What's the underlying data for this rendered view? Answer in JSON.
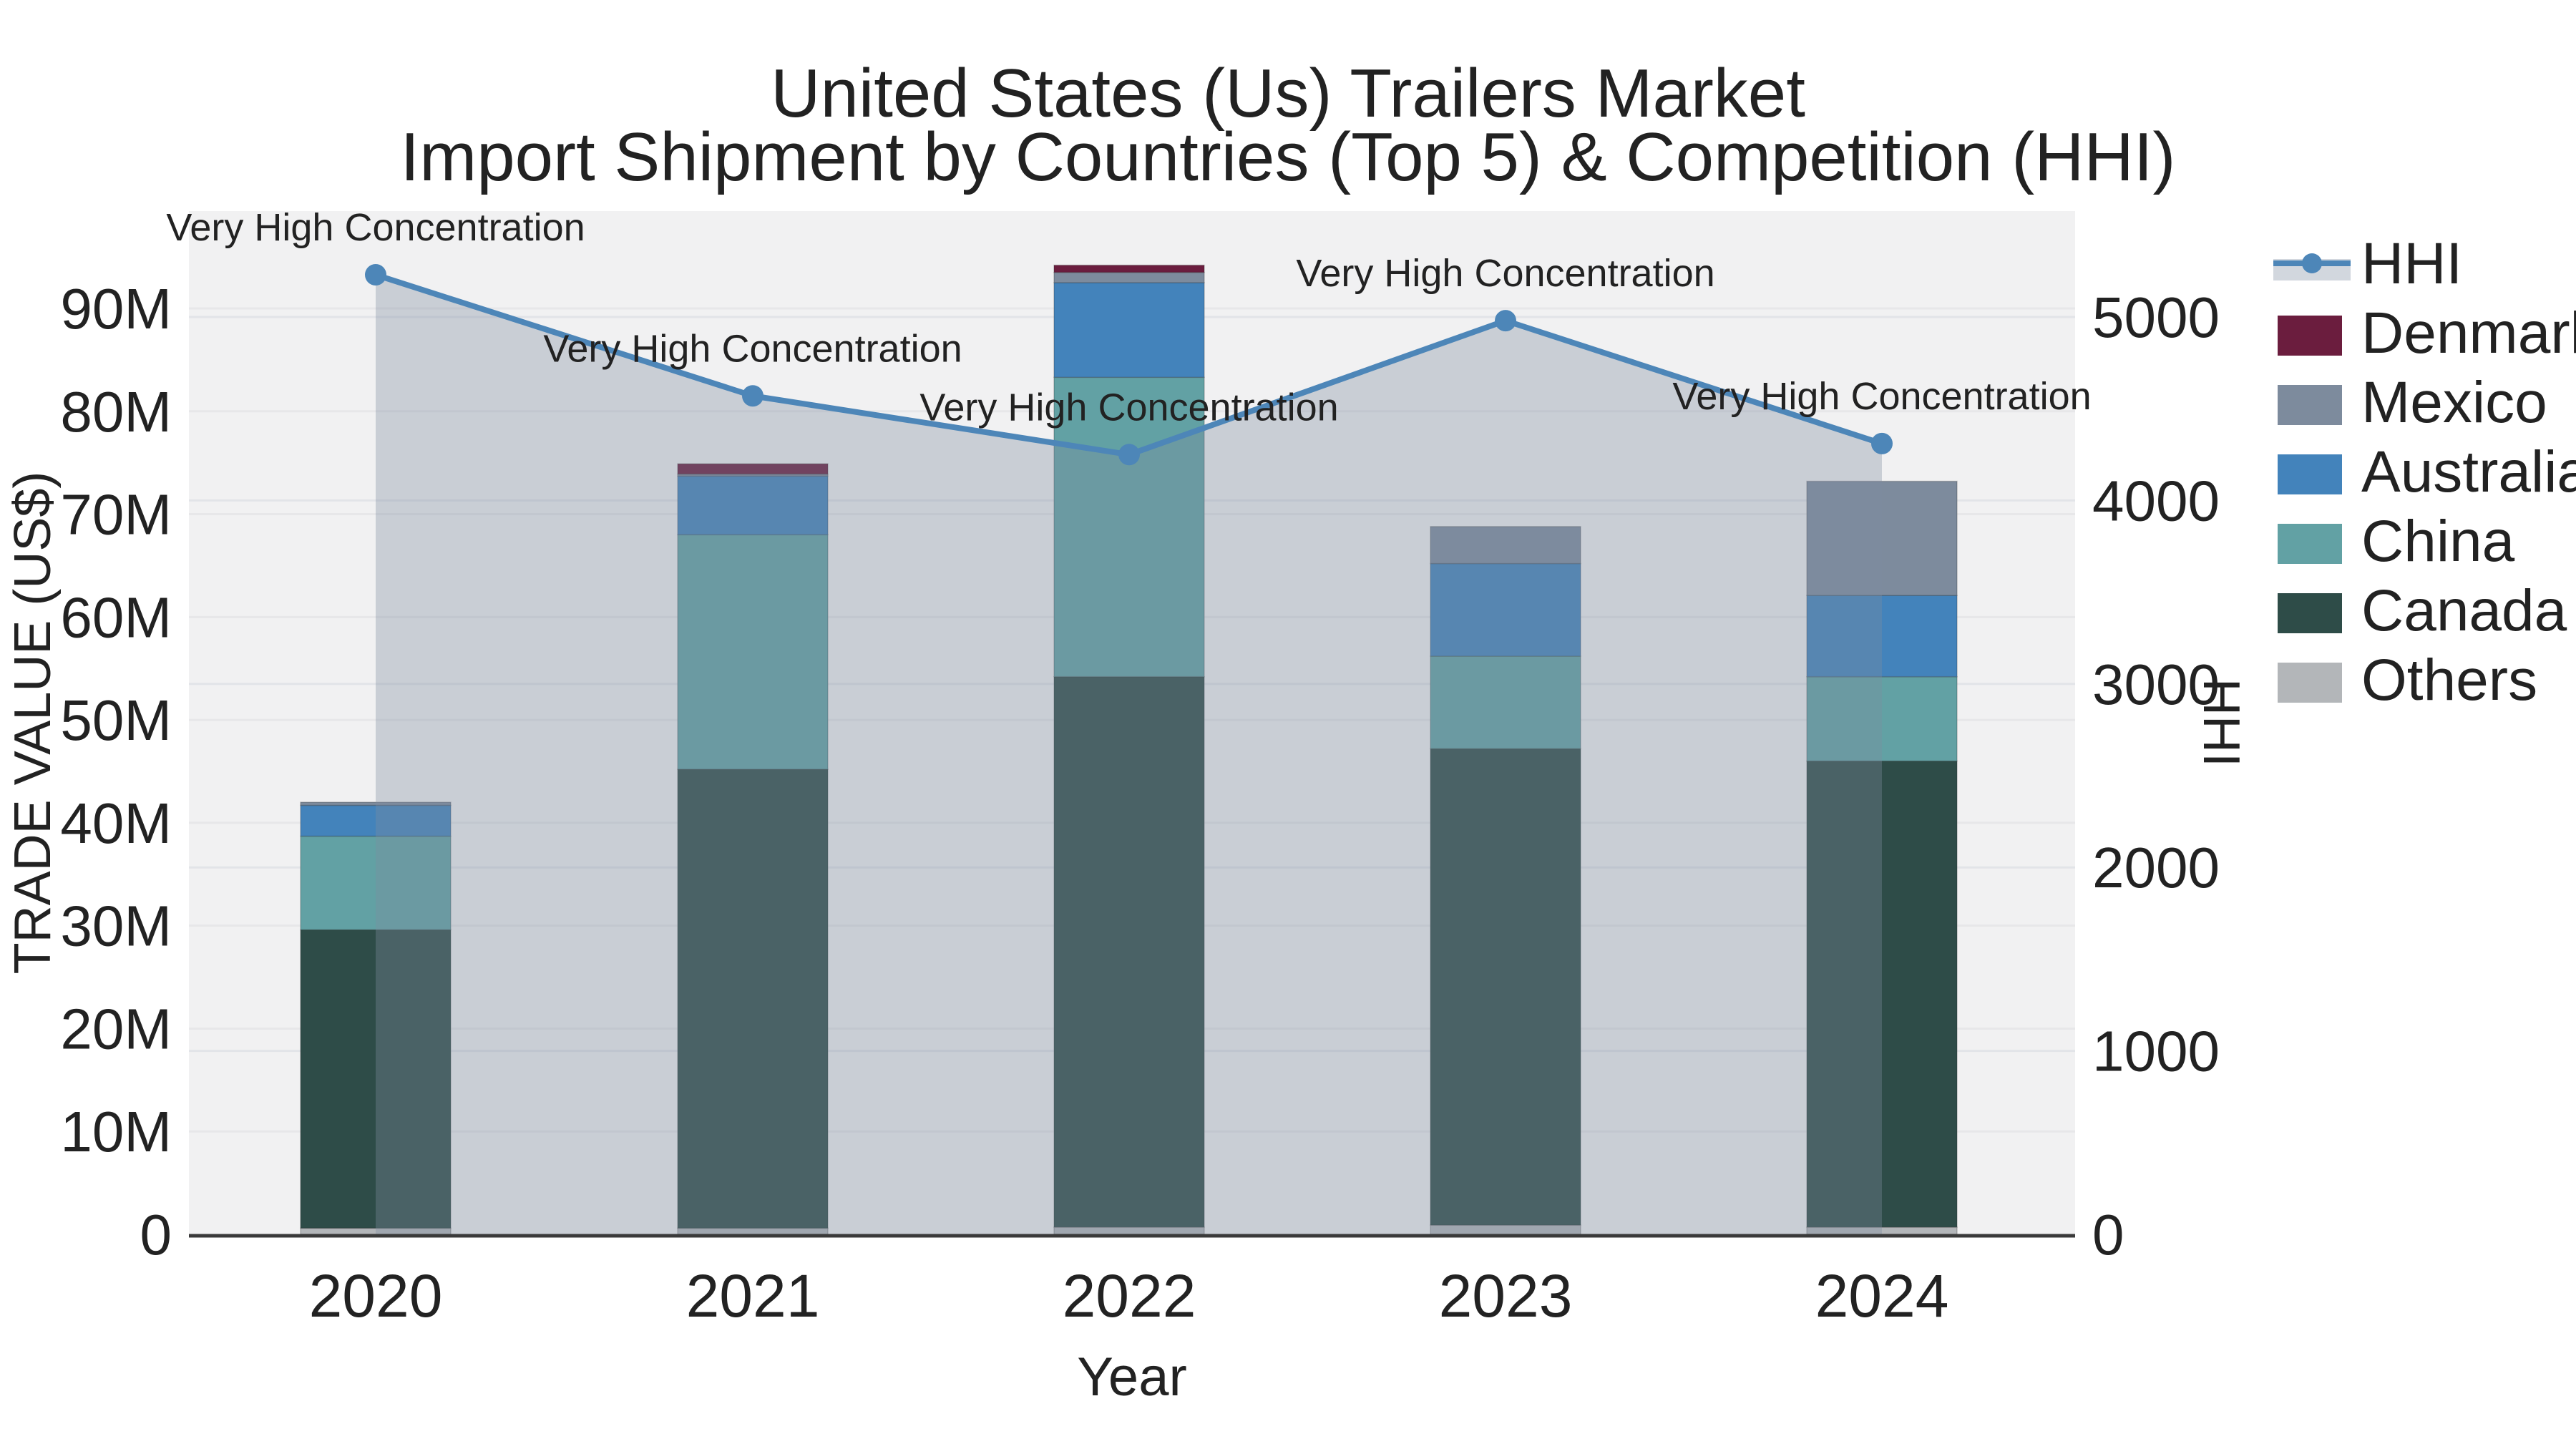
{
  "title": {
    "line1": "United States (Us) Trailers Market",
    "line2": "Import Shipment by Countries (Top 5) & Competition (HHI)"
  },
  "annotation_text": "Very High Concentration",
  "axes": {
    "x": {
      "title": "Year",
      "ticks": [
        "2020",
        "2021",
        "2022",
        "2023",
        "2024"
      ]
    },
    "y_left": {
      "title": "TRADE VALUE (US$)",
      "ticks": [
        "0",
        "10M",
        "20M",
        "30M",
        "40M",
        "50M",
        "60M",
        "70M",
        "80M",
        "90M"
      ],
      "tick_values_millions": [
        0,
        10,
        20,
        30,
        40,
        50,
        60,
        70,
        80,
        90
      ]
    },
    "y_right": {
      "title": "HHI",
      "ticks": [
        "0",
        "1000",
        "2000",
        "3000",
        "4000",
        "5000"
      ],
      "tick_values": [
        0,
        1000,
        2000,
        3000,
        4000,
        5000
      ]
    }
  },
  "legend": {
    "items": [
      {
        "label": "HHI",
        "type": "line",
        "color": "#4d86b8"
      },
      {
        "label": "Denmark",
        "type": "swatch",
        "color": "#6b1d3e"
      },
      {
        "label": "Mexico",
        "type": "swatch",
        "color": "#7d8b9d"
      },
      {
        "label": "Australia",
        "type": "swatch",
        "color": "#4383bb"
      },
      {
        "label": "China",
        "type": "swatch",
        "color": "#62a1a4"
      },
      {
        "label": "Canada",
        "type": "swatch",
        "color": "#2e4c48"
      },
      {
        "label": "Others",
        "type": "swatch",
        "color": "#b3b6b9"
      }
    ]
  },
  "chart_data": {
    "type": "bar",
    "subtype": "stacked-bars-with-line-overlay",
    "categories": [
      "2020",
      "2021",
      "2022",
      "2023",
      "2024"
    ],
    "bar_units": "million US$",
    "series": [
      {
        "name": "Others",
        "color": "#b3b6b9",
        "values": [
          0.6,
          0.6,
          0.7,
          0.9,
          0.7
        ]
      },
      {
        "name": "Canada",
        "color": "#2e4c48",
        "values": [
          29.0,
          44.6,
          53.5,
          46.3,
          45.3
        ]
      },
      {
        "name": "China",
        "color": "#62a1a4",
        "values": [
          9.1,
          22.8,
          29.1,
          9.0,
          8.2
        ]
      },
      {
        "name": "Australia",
        "color": "#4383bb",
        "values": [
          3.0,
          5.7,
          9.2,
          9.0,
          7.9
        ]
      },
      {
        "name": "Mexico",
        "color": "#7d8b9d",
        "values": [
          0.3,
          0.2,
          1.0,
          3.6,
          11.1
        ]
      },
      {
        "name": "Denmark",
        "color": "#6b1d3e",
        "values": [
          0.0,
          1.0,
          0.7,
          0.0,
          0.0
        ]
      }
    ],
    "bar_totals_millions": [
      42.0,
      74.9,
      94.2,
      68.8,
      73.2
    ],
    "line_series": {
      "name": "HHI",
      "color": "#4d86b8",
      "area_fill": "rgba(125,140,160,0.35)",
      "values": [
        5230,
        4570,
        4250,
        4980,
        4310
      ],
      "axis": "y_right",
      "point_annotations": [
        "Very High Concentration",
        "Very High Concentration",
        "Very High Concentration",
        "Very High Concentration",
        "Very High Concentration"
      ]
    },
    "ylim_left_millions": [
      0,
      98
    ],
    "ylim_right": [
      0,
      5000
    ],
    "grid": true,
    "legend_position": "right",
    "plot_bg": "#f1f1f2"
  },
  "colors": {
    "plot_bg": "#f1f1f2",
    "grid_left": "#e7e7e9",
    "grid_right": "#e2e4e8",
    "axis_line": "#3a3a3a",
    "hhi_line": "#4d86b8",
    "area_fill": "rgba(125,140,160,0.35)",
    "tick_text": "#1a1a1a"
  }
}
